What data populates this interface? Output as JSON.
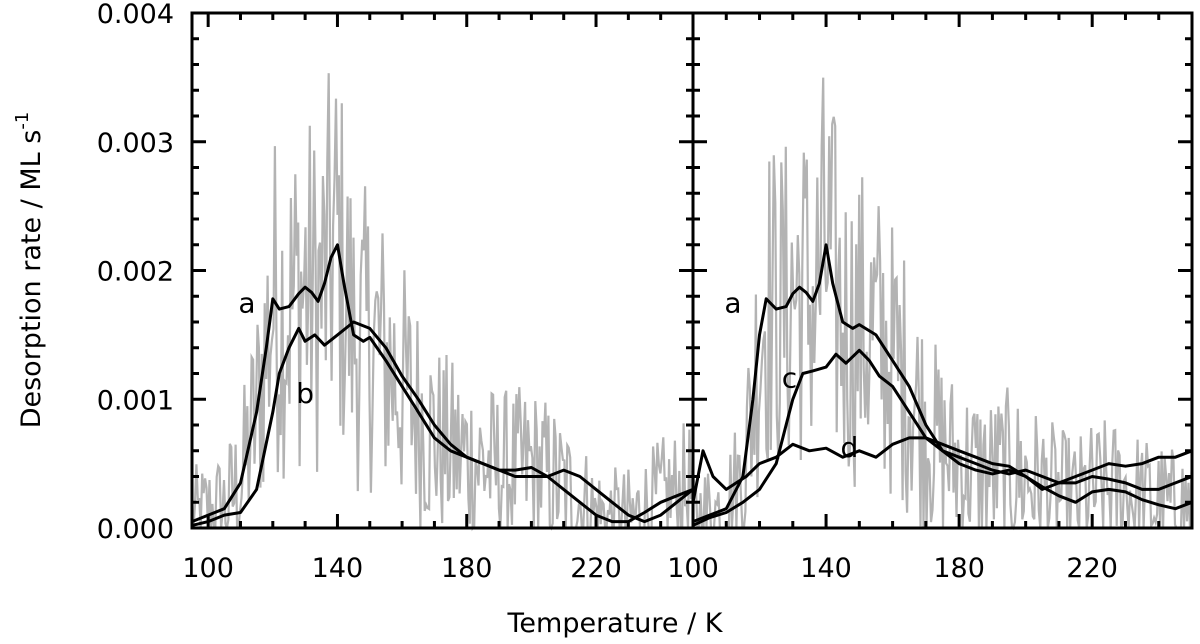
{
  "chart_data": {
    "type": "line",
    "xlabel": "Temperature / K",
    "ylabel_main": "Desorption rate / ML s",
    "ylabel_sup": "-1",
    "ylim": [
      0.0,
      0.004
    ],
    "yticks": [
      "0.000",
      "0.001",
      "0.002",
      "0.003",
      "0.004"
    ],
    "grid": false,
    "panels": [
      {
        "xlim": [
          95,
          250
        ],
        "xticks": [
          "100",
          "140",
          "180",
          "220"
        ],
        "xtick_values": [
          100,
          140,
          180,
          220
        ],
        "raw_data_color": "#b3b3b3",
        "series": [
          {
            "name": "a",
            "x": [
              95,
              100,
              105,
              110,
              115,
              118,
              120,
              122,
              125,
              128,
              130,
              132,
              134,
              136,
              138,
              140,
              142,
              145,
              148,
              150,
              155,
              160,
              165,
              170,
              175,
              180,
              185,
              190,
              195,
              200,
              205,
              210,
              215,
              220,
              225,
              230,
              235,
              240,
              245,
              250
            ],
            "values": [
              5e-05,
              0.0001,
              0.00015,
              0.00035,
              0.0009,
              0.0014,
              0.00178,
              0.0017,
              0.00172,
              0.00182,
              0.00187,
              0.00183,
              0.00176,
              0.0019,
              0.0021,
              0.0022,
              0.0019,
              0.0015,
              0.00145,
              0.00148,
              0.0013,
              0.0011,
              0.0009,
              0.0007,
              0.0006,
              0.00055,
              0.0005,
              0.00045,
              0.00045,
              0.00047,
              0.0004,
              0.0003,
              0.0002,
              0.0001,
              5e-05,
              5e-05,
              0.00012,
              0.0002,
              0.00025,
              0.0003
            ]
          },
          {
            "name": "b",
            "x": [
              95,
              100,
              105,
              110,
              115,
              120,
              122,
              125,
              128,
              130,
              133,
              136,
              140,
              145,
              150,
              155,
              160,
              165,
              170,
              175,
              180,
              185,
              190,
              195,
              200,
              205,
              210,
              215,
              220,
              225,
              230,
              235,
              240,
              245,
              250
            ],
            "values": [
              2e-05,
              5e-05,
              0.0001,
              0.00012,
              0.0003,
              0.0009,
              0.0012,
              0.0014,
              0.00155,
              0.00145,
              0.0015,
              0.00142,
              0.0015,
              0.0016,
              0.00155,
              0.0014,
              0.00118,
              0.001,
              0.0008,
              0.00065,
              0.00055,
              0.0005,
              0.00045,
              0.0004,
              0.0004,
              0.0004,
              0.00045,
              0.0004,
              0.0003,
              0.0002,
              0.0001,
              5e-05,
              0.0001,
              0.0002,
              0.0003
            ]
          }
        ],
        "labels": [
          {
            "text": "a",
            "x": 112,
            "y": 0.00175
          },
          {
            "text": "b",
            "x": 130,
            "y": 0.00105
          }
        ]
      },
      {
        "xlim": [
          100,
          250
        ],
        "xticks": [
          "100",
          "140",
          "180",
          "220"
        ],
        "xtick_values": [
          100,
          140,
          180,
          220
        ],
        "raw_data_color": "#b3b3b3",
        "series": [
          {
            "name": "a",
            "x": [
              100,
              105,
              110,
              115,
              118,
              120,
              122,
              125,
              128,
              130,
              132,
              134,
              136,
              138,
              140,
              142,
              145,
              148,
              150,
              155,
              160,
              165,
              170,
              175,
              180,
              185,
              190,
              195,
              200,
              205,
              210,
              215,
              220,
              225,
              230,
              235,
              240,
              245,
              250
            ],
            "values": [
              5e-05,
              0.0001,
              0.00015,
              0.0004,
              0.001,
              0.0015,
              0.00178,
              0.0017,
              0.00172,
              0.00182,
              0.00187,
              0.00183,
              0.00176,
              0.0019,
              0.0022,
              0.0019,
              0.0016,
              0.00155,
              0.00158,
              0.0015,
              0.0013,
              0.0011,
              0.0008,
              0.0006,
              0.0005,
              0.00045,
              0.00042,
              0.00045,
              0.0004,
              0.00032,
              0.00025,
              0.0002,
              0.00028,
              0.0003,
              0.00028,
              0.00022,
              0.00018,
              0.00015,
              0.0002
            ]
          },
          {
            "name": "c",
            "x": [
              100,
              105,
              110,
              115,
              120,
              125,
              128,
              130,
              133,
              136,
              140,
              143,
              146,
              150,
              153,
              156,
              160,
              165,
              170,
              175,
              180,
              185,
              190,
              195,
              200,
              205,
              210,
              215,
              220,
              225,
              230,
              235,
              240,
              245,
              250
            ],
            "values": [
              2e-05,
              8e-05,
              0.00012,
              0.0002,
              0.0003,
              0.0005,
              0.0008,
              0.001,
              0.0012,
              0.00122,
              0.00125,
              0.00135,
              0.00128,
              0.00138,
              0.0013,
              0.00118,
              0.0011,
              0.0009,
              0.0007,
              0.0006,
              0.00055,
              0.0005,
              0.00045,
              0.00042,
              0.00045,
              0.0004,
              0.00035,
              0.00035,
              0.0004,
              0.00038,
              0.00035,
              0.0003,
              0.0003,
              0.00035,
              0.0004
            ]
          },
          {
            "name": "d",
            "x": [
              100,
              103,
              106,
              110,
              113,
              116,
              120,
              125,
              130,
              135,
              140,
              145,
              150,
              155,
              160,
              165,
              170,
              175,
              180,
              185,
              190,
              195,
              200,
              205,
              210,
              215,
              220,
              225,
              230,
              235,
              240,
              245,
              250
            ],
            "values": [
              0.0002,
              0.0006,
              0.0004,
              0.0003,
              0.00035,
              0.0004,
              0.0005,
              0.00055,
              0.00065,
              0.0006,
              0.00062,
              0.00055,
              0.0006,
              0.00055,
              0.00065,
              0.0007,
              0.0007,
              0.00065,
              0.0006,
              0.00055,
              0.0005,
              0.00048,
              0.0004,
              0.0003,
              0.00035,
              0.0004,
              0.00045,
              0.0005,
              0.00048,
              0.0005,
              0.00055,
              0.00055,
              0.0006
            ]
          }
        ],
        "labels": [
          {
            "text": "a",
            "x": 112,
            "y": 0.00175
          },
          {
            "text": "c",
            "x": 129,
            "y": 0.00117
          },
          {
            "text": "d",
            "x": 147,
            "y": 0.00063
          }
        ]
      }
    ]
  }
}
